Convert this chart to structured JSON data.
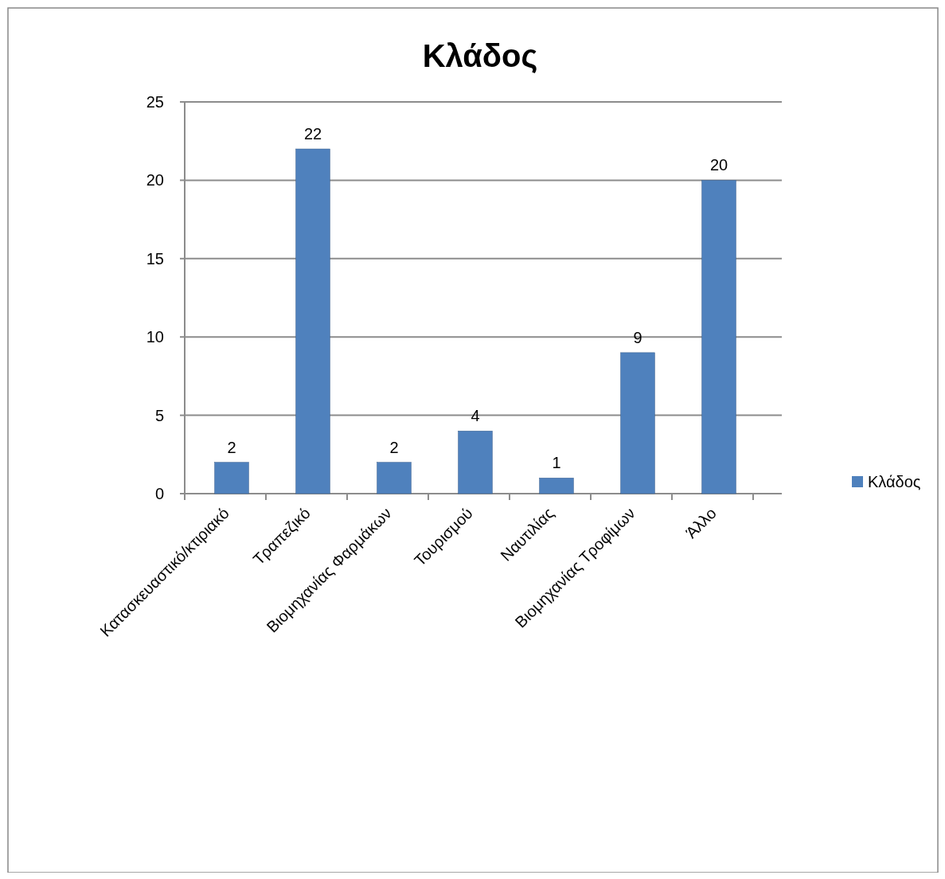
{
  "chart_data": {
    "type": "bar",
    "title": "Κλάδος",
    "categories": [
      "Κατασκευαστικό/κτιριακό",
      "Τραπεζικό",
      "Βιομηχανίας Φαρμάκων",
      "Τουρισμού",
      "Ναυτιλίας",
      "Βιομηχανίας Τροφίμων",
      "Άλλο"
    ],
    "series": [
      {
        "name": "Κλάδος",
        "color": "#4f81bd",
        "values": [
          2,
          22,
          2,
          4,
          1,
          9,
          20
        ]
      }
    ],
    "ylim": [
      0,
      25
    ],
    "yticks": [
      0,
      5,
      10,
      15,
      20,
      25
    ],
    "grid": "y",
    "legend": "right",
    "data_labels": true
  }
}
